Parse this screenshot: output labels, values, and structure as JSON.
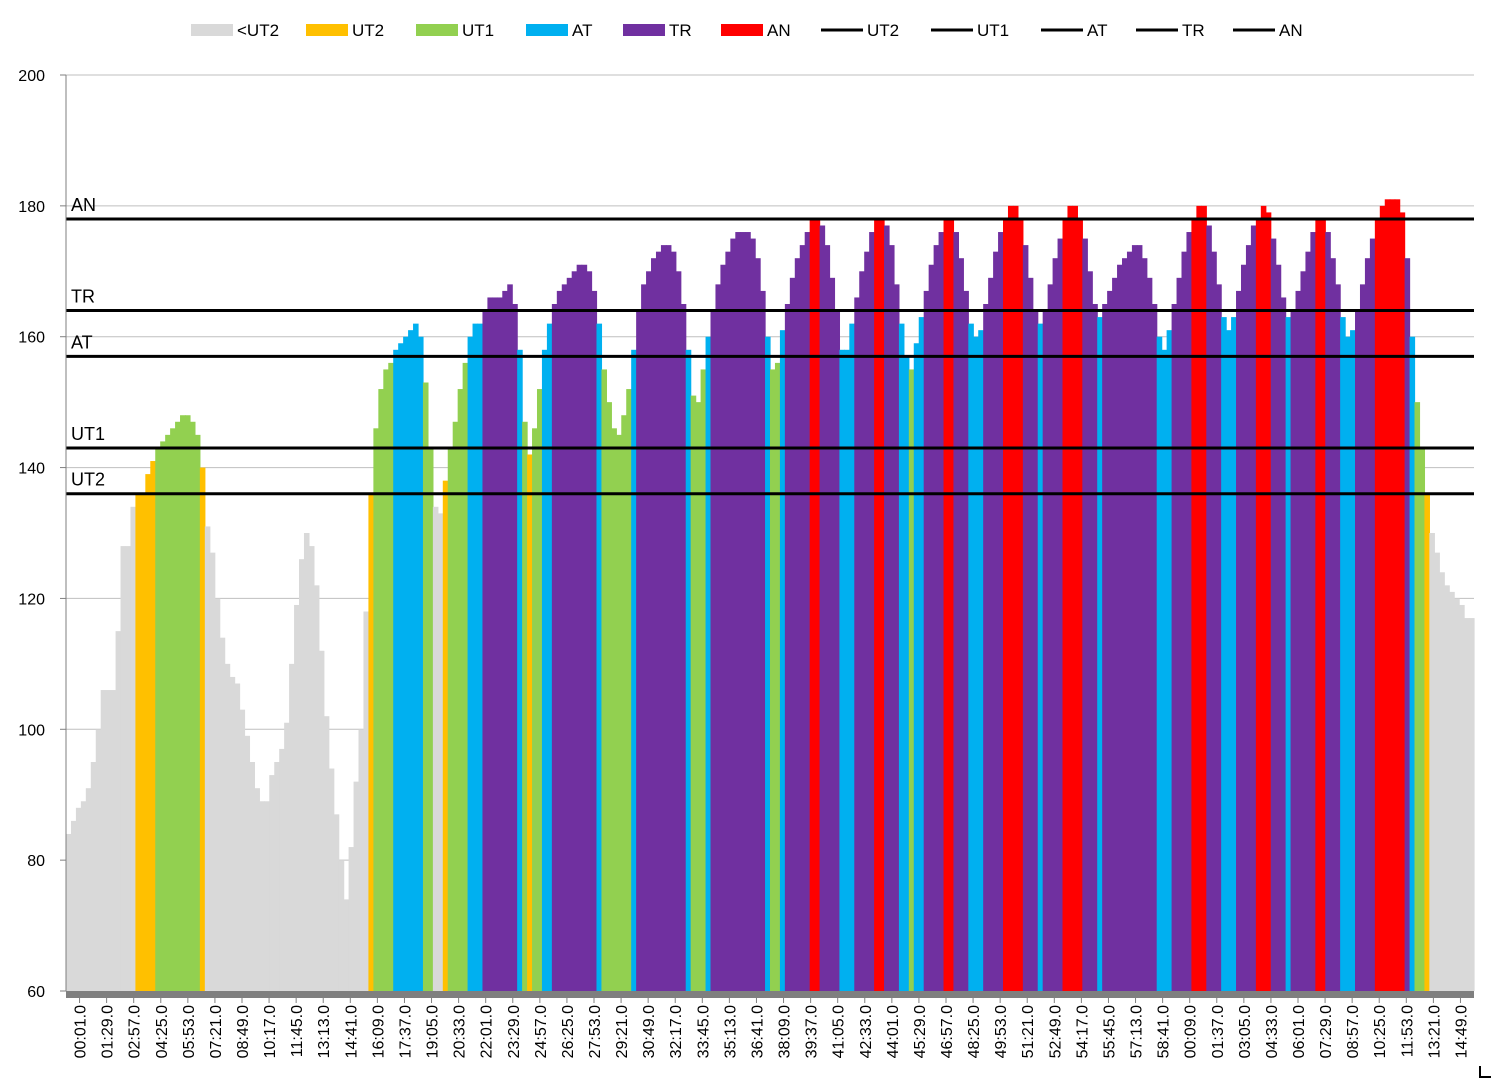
{
  "chart_data": {
    "type": "area",
    "title": "",
    "xlabel": "",
    "ylabel": "",
    "ylim": [
      60,
      200
    ],
    "yticks": [
      60,
      80,
      100,
      120,
      140,
      160,
      180,
      200
    ],
    "grid": "horizontal",
    "legend_position": "top",
    "legend": [
      {
        "label": "<UT2",
        "kind": "area",
        "color": "#d9d9d9"
      },
      {
        "label": "UT2",
        "kind": "area",
        "color": "#ffc000"
      },
      {
        "label": "UT1",
        "kind": "area",
        "color": "#92d050"
      },
      {
        "label": "AT",
        "kind": "area",
        "color": "#00b0f0"
      },
      {
        "label": "TR",
        "kind": "area",
        "color": "#7030a0"
      },
      {
        "label": "AN",
        "kind": "area",
        "color": "#ff0000"
      },
      {
        "label": "UT2",
        "kind": "line",
        "color": "#000000"
      },
      {
        "label": "UT1",
        "kind": "line",
        "color": "#000000"
      },
      {
        "label": "AT",
        "kind": "line",
        "color": "#000000"
      },
      {
        "label": "TR",
        "kind": "line",
        "color": "#000000"
      },
      {
        "label": "AN",
        "kind": "line",
        "color": "#000000"
      }
    ],
    "zones": [
      {
        "name": "<UT2",
        "min": 0,
        "color": "#d9d9d9"
      },
      {
        "name": "UT2",
        "min": 136,
        "color": "#ffc000"
      },
      {
        "name": "UT1",
        "min": 143,
        "color": "#92d050"
      },
      {
        "name": "AT",
        "min": 157,
        "color": "#00b0f0"
      },
      {
        "name": "TR",
        "min": 164,
        "color": "#7030a0"
      },
      {
        "name": "AN",
        "min": 178,
        "color": "#ff0000"
      }
    ],
    "thresholds": [
      {
        "label": "UT2",
        "value": 136
      },
      {
        "label": "UT1",
        "value": 143
      },
      {
        "label": "AT",
        "value": 157
      },
      {
        "label": "TR",
        "value": 164
      },
      {
        "label": "AN",
        "value": 178
      }
    ],
    "x_tick_labels": [
      "00:01.0",
      "01:29.0",
      "02:57.0",
      "04:25.0",
      "05:53.0",
      "07:21.0",
      "08:49.0",
      "10:17.0",
      "11:45.0",
      "13:13.0",
      "14:41.0",
      "16:09.0",
      "17:37.0",
      "19:05.0",
      "20:33.0",
      "22:01.0",
      "23:29.0",
      "24:57.0",
      "26:25.0",
      "27:53.0",
      "29:21.0",
      "30:49.0",
      "32:17.0",
      "33:45.0",
      "35:13.0",
      "36:41.0",
      "38:09.0",
      "39:37.0",
      "41:05.0",
      "42:33.0",
      "44:01.0",
      "45:29.0",
      "46:57.0",
      "48:25.0",
      "49:53.0",
      "51:21.0",
      "52:49.0",
      "54:17.0",
      "55:45.0",
      "57:13.0",
      "58:41.0",
      "00:09.0",
      "01:37.0",
      "03:05.0",
      "04:33.0",
      "06:01.0",
      "07:29.0",
      "08:57.0",
      "10:25.0",
      "11:53.0",
      "13:21.0",
      "14:49.0"
    ],
    "heart_rate": [
      84,
      86,
      88,
      89,
      91,
      95,
      100,
      106,
      106,
      106,
      115,
      128,
      128,
      134,
      136,
      136,
      139,
      141,
      143,
      144,
      145,
      146,
      147,
      148,
      148,
      147,
      145,
      140,
      131,
      127,
      120,
      114,
      110,
      108,
      107,
      103,
      99,
      95,
      91,
      89,
      89,
      93,
      95,
      97,
      101,
      110,
      119,
      126,
      130,
      128,
      122,
      112,
      102,
      94,
      87,
      80,
      74,
      82,
      92,
      100,
      118,
      136,
      146,
      152,
      155,
      156,
      158,
      159,
      160,
      161,
      162,
      160,
      153,
      143,
      134,
      133,
      138,
      143,
      147,
      152,
      156,
      160,
      162,
      162,
      164,
      166,
      166,
      166,
      167,
      168,
      165,
      158,
      147,
      142,
      146,
      152,
      158,
      162,
      165,
      167,
      168,
      169,
      170,
      171,
      171,
      170,
      167,
      162,
      155,
      150,
      146,
      145,
      148,
      152,
      158,
      164,
      168,
      170,
      172,
      173,
      174,
      174,
      173,
      170,
      165,
      158,
      151,
      150,
      155,
      160,
      164,
      168,
      171,
      173,
      175,
      176,
      176,
      176,
      175,
      172,
      167,
      160,
      155,
      156,
      161,
      165,
      169,
      172,
      174,
      176,
      178,
      178,
      177,
      174,
      169,
      164,
      158,
      158,
      162,
      166,
      170,
      173,
      176,
      178,
      178,
      177,
      174,
      168,
      162,
      157,
      155,
      159,
      163,
      167,
      171,
      174,
      176,
      178,
      178,
      176,
      172,
      167,
      162,
      160,
      161,
      165,
      169,
      173,
      176,
      178,
      180,
      180,
      178,
      174,
      169,
      164,
      162,
      164,
      168,
      172,
      175,
      178,
      180,
      180,
      178,
      175,
      170,
      165,
      163,
      165,
      167,
      169,
      171,
      172,
      173,
      174,
      174,
      172,
      169,
      165,
      160,
      158,
      161,
      165,
      169,
      173,
      176,
      178,
      180,
      180,
      177,
      173,
      168,
      163,
      161,
      163,
      167,
      171,
      174,
      177,
      178,
      180,
      179,
      175,
      171,
      166,
      163,
      164,
      167,
      170,
      173,
      176,
      178,
      178,
      176,
      172,
      168,
      163,
      160,
      161,
      164,
      168,
      172,
      175,
      178,
      180,
      181,
      181,
      181,
      179,
      172,
      160,
      150,
      143,
      136,
      130,
      127,
      124,
      122,
      121,
      120,
      119,
      117,
      117
    ]
  }
}
